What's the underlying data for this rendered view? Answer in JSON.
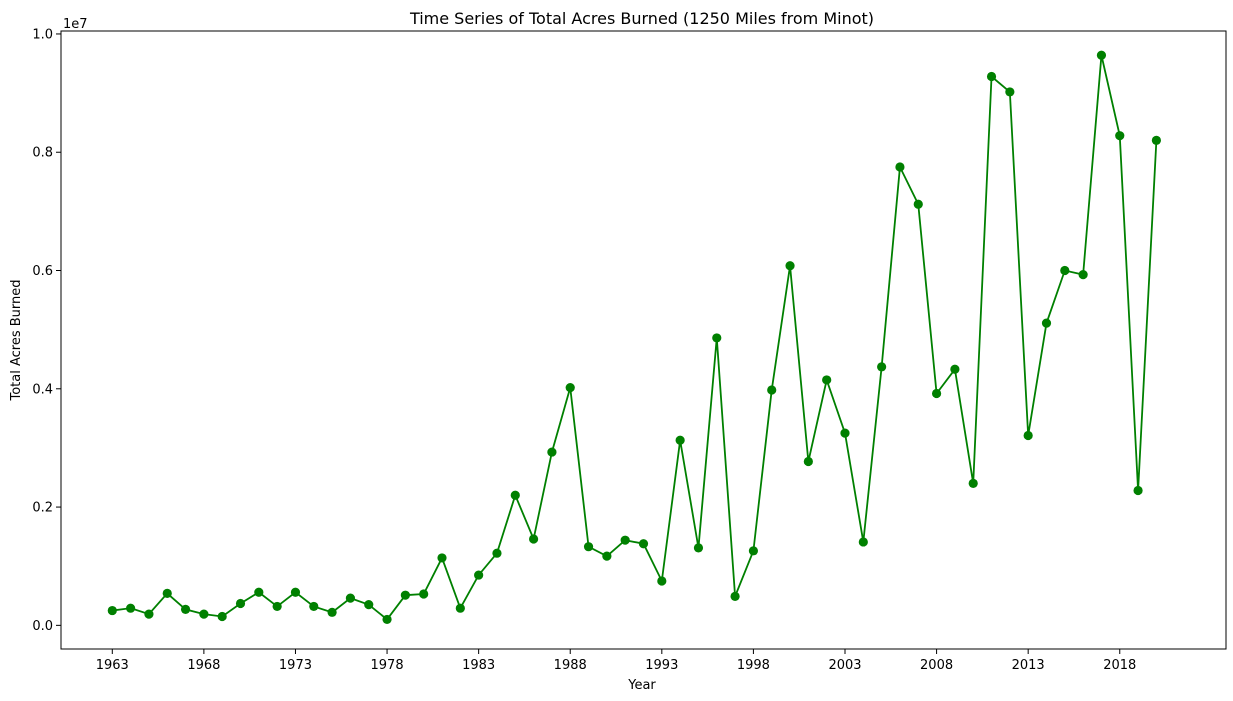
{
  "chart_data": {
    "type": "line",
    "title": "Time Series of Total Acres Burned (1250 Miles from Minot)",
    "xlabel": "Year",
    "ylabel": "Total Acres Burned",
    "y_offset_label": "1e7",
    "xlim": [
      1960.2,
      2023.8
    ],
    "ylim": [
      -0.04,
      1.005
    ],
    "y_scale_note": "values in units of 1e7 acres",
    "x_ticks": [
      1963,
      1968,
      1973,
      1978,
      1983,
      1988,
      1993,
      1998,
      2003,
      2008,
      2013,
      2018
    ],
    "y_ticks": [
      0.0,
      0.2,
      0.4,
      0.6,
      0.8,
      1.0
    ],
    "y_tick_labels": [
      "0.0",
      "0.2",
      "0.4",
      "0.6",
      "0.8",
      "1.0"
    ],
    "grid": false,
    "series": [
      {
        "color": "#008000",
        "marker": "circle",
        "x": [
          1963,
          1964,
          1965,
          1966,
          1967,
          1968,
          1969,
          1970,
          1971,
          1972,
          1973,
          1974,
          1975,
          1976,
          1977,
          1978,
          1979,
          1980,
          1981,
          1982,
          1983,
          1984,
          1985,
          1986,
          1987,
          1988,
          1989,
          1990,
          1991,
          1992,
          1993,
          1994,
          1995,
          1996,
          1997,
          1998,
          1999,
          2000,
          2001,
          2002,
          2003,
          2004,
          2005,
          2006,
          2007,
          2008,
          2009,
          2010,
          2011,
          2012,
          2013,
          2014,
          2015,
          2016,
          2017,
          2018,
          2019,
          2020
        ],
        "values": [
          0.025,
          0.029,
          0.019,
          0.054,
          0.027,
          0.019,
          0.015,
          0.037,
          0.056,
          0.032,
          0.056,
          0.032,
          0.022,
          0.046,
          0.035,
          0.01,
          0.051,
          0.053,
          0.114,
          0.029,
          0.085,
          0.122,
          0.22,
          0.146,
          0.293,
          0.402,
          0.133,
          0.117,
          0.144,
          0.138,
          0.075,
          0.313,
          0.131,
          0.486,
          0.049,
          0.126,
          0.398,
          0.608,
          0.277,
          0.415,
          0.325,
          0.141,
          0.437,
          0.775,
          0.712,
          0.392,
          0.433,
          0.24,
          0.928,
          0.902,
          0.321,
          0.511,
          0.6,
          0.593,
          0.964,
          0.828,
          0.228,
          0.82
        ]
      }
    ]
  }
}
